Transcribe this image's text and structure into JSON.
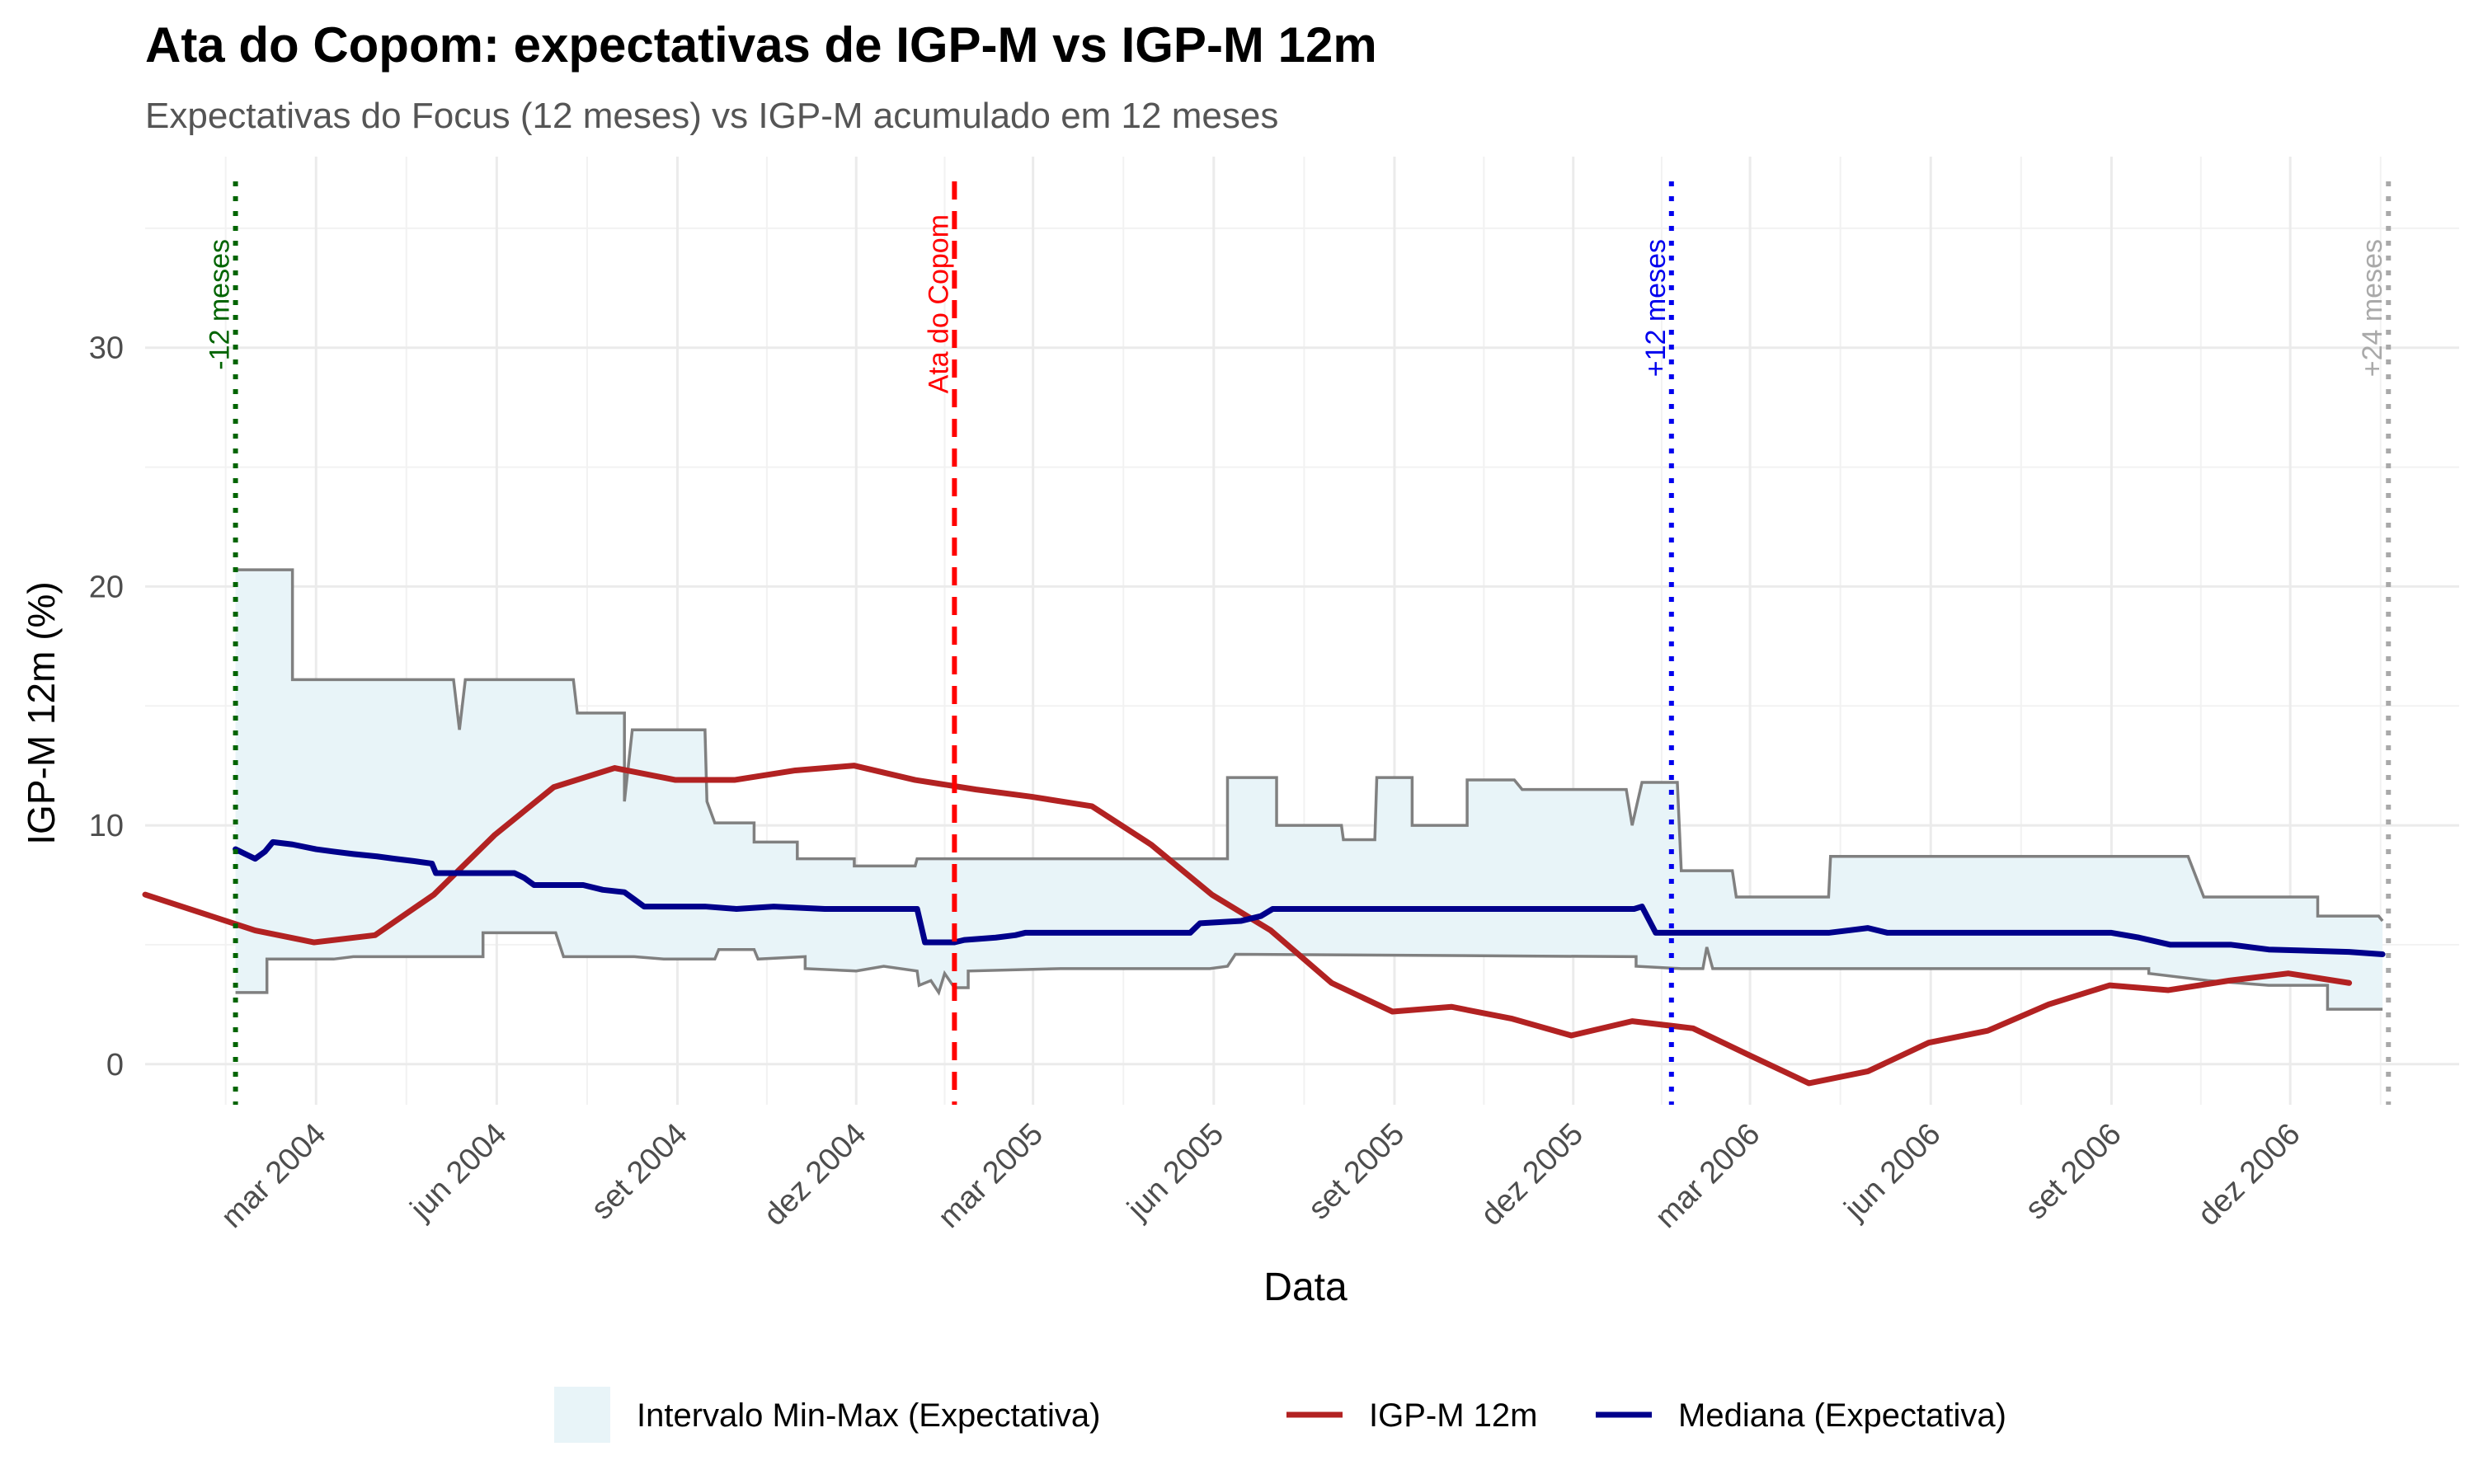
{
  "chart_data": {
    "type": "line",
    "title": "Ata do Copom: expectativas de IGP-M vs IGP-M 12m",
    "subtitle": "Expectativas do Focus (12 meses) vs IGP-M acumulado em 12 meses",
    "xlabel": "Data",
    "ylabel": "IGP-M 12m (%)",
    "xlim": [
      "2003-12-05",
      "2007-02-25"
    ],
    "ylim": [
      -1.7,
      38
    ],
    "y_ticks": [
      0,
      10,
      20,
      30
    ],
    "x_ticks": [
      {
        "date": "2004-03-01",
        "label": "mar 2004"
      },
      {
        "date": "2004-06-01",
        "label": "jun 2004"
      },
      {
        "date": "2004-09-01",
        "label": "set 2004"
      },
      {
        "date": "2004-12-01",
        "label": "dez 2004"
      },
      {
        "date": "2005-03-01",
        "label": "mar 2005"
      },
      {
        "date": "2005-06-01",
        "label": "jun 2005"
      },
      {
        "date": "2005-09-01",
        "label": "set 2005"
      },
      {
        "date": "2005-12-01",
        "label": "dez 2005"
      },
      {
        "date": "2006-03-01",
        "label": "mar 2006"
      },
      {
        "date": "2006-06-01",
        "label": "jun 2006"
      },
      {
        "date": "2006-09-01",
        "label": "set 2006"
      },
      {
        "date": "2006-12-01",
        "label": "dez 2006"
      }
    ],
    "grid": true,
    "legend_position": "bottom",
    "reference_lines": [
      {
        "date": "2004-01-20",
        "label": "-12 meses",
        "color": "#006400",
        "style": "dotted"
      },
      {
        "date": "2005-01-20",
        "label": "Ata do Copom",
        "color": "#ff0000",
        "style": "dashed"
      },
      {
        "date": "2006-01-20",
        "label": "+12 meses",
        "color": "#0000ee",
        "style": "dotted"
      },
      {
        "date": "2007-01-20",
        "label": "+24 meses",
        "color": "#a9a9a9",
        "style": "dotted"
      }
    ],
    "series": [
      {
        "name": "Intervalo Min-Max (Expectativa)",
        "kind": "ribbon",
        "fill": "#e8f4f8",
        "stroke": "#808080",
        "max": [
          [
            "2004-01-20",
            20.7
          ],
          [
            "2004-02-18",
            20.7
          ],
          [
            "2004-02-18",
            16.1
          ],
          [
            "2004-05-10",
            16.1
          ],
          [
            "2004-05-13",
            14.0
          ],
          [
            "2004-05-16",
            16.1
          ],
          [
            "2004-07-10",
            16.1
          ],
          [
            "2004-07-12",
            14.7
          ],
          [
            "2004-08-05",
            14.7
          ],
          [
            "2004-08-05",
            11.0
          ],
          [
            "2004-08-09",
            14.0
          ],
          [
            "2004-09-15",
            14.0
          ],
          [
            "2004-09-16",
            11.0
          ],
          [
            "2004-09-20",
            10.1
          ],
          [
            "2004-10-10",
            10.1
          ],
          [
            "2004-10-10",
            9.3
          ],
          [
            "2004-11-01",
            9.3
          ],
          [
            "2004-11-01",
            8.6
          ],
          [
            "2004-11-30",
            8.6
          ],
          [
            "2004-11-30",
            8.3
          ],
          [
            "2004-12-15",
            8.3
          ],
          [
            "2004-12-31",
            8.3
          ],
          [
            "2005-01-01",
            8.6
          ],
          [
            "2005-06-08",
            8.6
          ],
          [
            "2005-06-08",
            12.0
          ],
          [
            "2005-07-03",
            12.0
          ],
          [
            "2005-07-03",
            10.0
          ],
          [
            "2005-08-05",
            10.0
          ],
          [
            "2005-08-06",
            9.4
          ],
          [
            "2005-08-22",
            9.4
          ],
          [
            "2005-08-23",
            12.0
          ],
          [
            "2005-09-10",
            12.0
          ],
          [
            "2005-09-10",
            10.0
          ],
          [
            "2005-10-08",
            10.0
          ],
          [
            "2005-10-08",
            11.9
          ],
          [
            "2005-11-01",
            11.9
          ],
          [
            "2005-11-05",
            11.5
          ],
          [
            "2005-12-28",
            11.5
          ],
          [
            "2005-12-31",
            10.0
          ],
          [
            "2006-01-05",
            11.8
          ],
          [
            "2006-01-23",
            11.8
          ],
          [
            "2006-01-25",
            8.1
          ],
          [
            "2006-02-20",
            8.1
          ],
          [
            "2006-02-22",
            7.0
          ],
          [
            "2006-04-10",
            7.0
          ],
          [
            "2006-04-11",
            8.7
          ],
          [
            "2006-10-10",
            8.7
          ],
          [
            "2006-10-18",
            7.0
          ],
          [
            "2006-12-15",
            7.0
          ],
          [
            "2006-12-15",
            6.2
          ],
          [
            "2007-01-15",
            6.2
          ],
          [
            "2007-01-17",
            6.0
          ]
        ],
        "min": [
          [
            "2004-01-20",
            3.0
          ],
          [
            "2004-02-05",
            3.0
          ],
          [
            "2004-02-05",
            4.4
          ],
          [
            "2004-03-10",
            4.4
          ],
          [
            "2004-03-20",
            4.5
          ],
          [
            "2004-05-25",
            4.5
          ],
          [
            "2004-05-25",
            5.5
          ],
          [
            "2004-07-01",
            5.5
          ],
          [
            "2004-07-05",
            4.5
          ],
          [
            "2004-08-10",
            4.5
          ],
          [
            "2004-08-25",
            4.4
          ],
          [
            "2004-09-20",
            4.4
          ],
          [
            "2004-09-22",
            4.8
          ],
          [
            "2004-10-10",
            4.8
          ],
          [
            "2004-10-12",
            4.4
          ],
          [
            "2004-11-05",
            4.5
          ],
          [
            "2004-11-05",
            4.0
          ],
          [
            "2004-12-01",
            3.9
          ],
          [
            "2004-12-15",
            4.1
          ],
          [
            "2005-01-01",
            3.9
          ],
          [
            "2005-01-02",
            3.3
          ],
          [
            "2005-01-08",
            3.5
          ],
          [
            "2005-01-12",
            3.0
          ],
          [
            "2005-01-15",
            3.8
          ],
          [
            "2005-01-20",
            3.2
          ],
          [
            "2005-01-27",
            3.2
          ],
          [
            "2005-01-27",
            3.9
          ],
          [
            "2005-03-15",
            4.0
          ],
          [
            "2005-05-30",
            4.0
          ],
          [
            "2005-06-08",
            4.1
          ],
          [
            "2005-06-12",
            4.6
          ],
          [
            "2006-01-02",
            4.5
          ],
          [
            "2006-01-02",
            4.1
          ],
          [
            "2006-01-25",
            4.0
          ],
          [
            "2006-02-05",
            4.0
          ],
          [
            "2006-02-07",
            4.9
          ],
          [
            "2006-02-10",
            4.0
          ],
          [
            "2006-09-20",
            4.0
          ],
          [
            "2006-09-20",
            3.8
          ],
          [
            "2006-10-20",
            3.5
          ],
          [
            "2006-11-20",
            3.3
          ],
          [
            "2006-12-20",
            3.3
          ],
          [
            "2006-12-20",
            2.3
          ],
          [
            "2007-01-17",
            2.3
          ]
        ]
      },
      {
        "name": "IGP-M 12m",
        "kind": "line",
        "color": "#b22222",
        "points": [
          [
            "2003-12-05",
            7.1
          ],
          [
            "2004-01-30",
            5.6
          ],
          [
            "2004-02-29",
            5.1
          ],
          [
            "2004-03-31",
            5.4
          ],
          [
            "2004-04-30",
            7.1
          ],
          [
            "2004-05-31",
            9.6
          ],
          [
            "2004-06-30",
            11.6
          ],
          [
            "2004-07-31",
            12.4
          ],
          [
            "2004-08-31",
            11.9
          ],
          [
            "2004-09-30",
            11.9
          ],
          [
            "2004-10-31",
            12.3
          ],
          [
            "2004-11-30",
            12.5
          ],
          [
            "2004-12-31",
            11.9
          ],
          [
            "2005-01-31",
            11.5
          ],
          [
            "2005-02-28",
            11.2
          ],
          [
            "2005-03-31",
            10.8
          ],
          [
            "2005-04-30",
            9.2
          ],
          [
            "2005-05-31",
            7.1
          ],
          [
            "2005-06-30",
            5.6
          ],
          [
            "2005-07-31",
            3.4
          ],
          [
            "2005-08-31",
            2.2
          ],
          [
            "2005-09-30",
            2.4
          ],
          [
            "2005-10-31",
            1.9
          ],
          [
            "2005-11-30",
            1.2
          ],
          [
            "2005-12-31",
            1.8
          ],
          [
            "2006-01-31",
            1.5
          ],
          [
            "2006-02-28",
            0.4
          ],
          [
            "2006-03-31",
            -0.8
          ],
          [
            "2006-04-30",
            -0.3
          ],
          [
            "2006-05-31",
            0.9
          ],
          [
            "2006-06-30",
            1.4
          ],
          [
            "2006-07-31",
            2.5
          ],
          [
            "2006-08-31",
            3.3
          ],
          [
            "2006-09-30",
            3.1
          ],
          [
            "2006-10-31",
            3.5
          ],
          [
            "2006-11-30",
            3.8
          ],
          [
            "2006-12-31",
            3.4
          ]
        ]
      },
      {
        "name": "Mediana (Expectativa)",
        "kind": "line",
        "color": "#00008b",
        "points": [
          [
            "2004-01-20",
            9.0
          ],
          [
            "2004-01-25",
            8.8
          ],
          [
            "2004-01-30",
            8.6
          ],
          [
            "2004-02-04",
            8.9
          ],
          [
            "2004-02-08",
            9.3
          ],
          [
            "2004-02-18",
            9.2
          ],
          [
            "2004-03-01",
            9.0
          ],
          [
            "2004-03-10",
            8.9
          ],
          [
            "2004-03-20",
            8.8
          ],
          [
            "2004-04-01",
            8.7
          ],
          [
            "2004-04-10",
            8.6
          ],
          [
            "2004-04-20",
            8.5
          ],
          [
            "2004-04-29",
            8.4
          ],
          [
            "2004-05-01",
            8.0
          ],
          [
            "2004-06-10",
            8.0
          ],
          [
            "2004-06-15",
            7.8
          ],
          [
            "2004-06-20",
            7.5
          ],
          [
            "2004-07-15",
            7.5
          ],
          [
            "2004-07-25",
            7.3
          ],
          [
            "2004-08-05",
            7.2
          ],
          [
            "2004-08-10",
            6.9
          ],
          [
            "2004-08-15",
            6.6
          ],
          [
            "2004-09-15",
            6.6
          ],
          [
            "2004-10-01",
            6.5
          ],
          [
            "2004-10-20",
            6.6
          ],
          [
            "2004-11-15",
            6.5
          ],
          [
            "2004-12-10",
            6.5
          ],
          [
            "2005-01-01",
            6.5
          ],
          [
            "2005-01-05",
            5.1
          ],
          [
            "2005-01-20",
            5.1
          ],
          [
            "2005-01-25",
            5.2
          ],
          [
            "2005-02-10",
            5.3
          ],
          [
            "2005-02-20",
            5.4
          ],
          [
            "2005-02-25",
            5.5
          ],
          [
            "2005-05-20",
            5.5
          ],
          [
            "2005-05-25",
            5.9
          ],
          [
            "2005-06-15",
            6.0
          ],
          [
            "2005-06-25",
            6.2
          ],
          [
            "2005-07-01",
            6.5
          ],
          [
            "2006-01-01",
            6.5
          ],
          [
            "2006-01-05",
            6.6
          ],
          [
            "2006-01-12",
            5.5
          ],
          [
            "2006-04-10",
            5.5
          ],
          [
            "2006-04-20",
            5.6
          ],
          [
            "2006-04-30",
            5.7
          ],
          [
            "2006-05-10",
            5.5
          ],
          [
            "2006-09-01",
            5.5
          ],
          [
            "2006-09-15",
            5.3
          ],
          [
            "2006-10-01",
            5.0
          ],
          [
            "2006-11-01",
            5.0
          ],
          [
            "2006-11-20",
            4.8
          ],
          [
            "2006-12-31",
            4.7
          ],
          [
            "2007-01-17",
            4.6
          ]
        ]
      }
    ]
  },
  "legend": {
    "items": [
      {
        "label": "Intervalo Min-Max (Expectativa)",
        "kind": "fill",
        "color": "#e8f4f8"
      },
      {
        "label": "IGP-M 12m",
        "kind": "line",
        "color": "#b22222"
      },
      {
        "label": "Mediana (Expectativa)",
        "kind": "line",
        "color": "#00008b"
      }
    ]
  }
}
